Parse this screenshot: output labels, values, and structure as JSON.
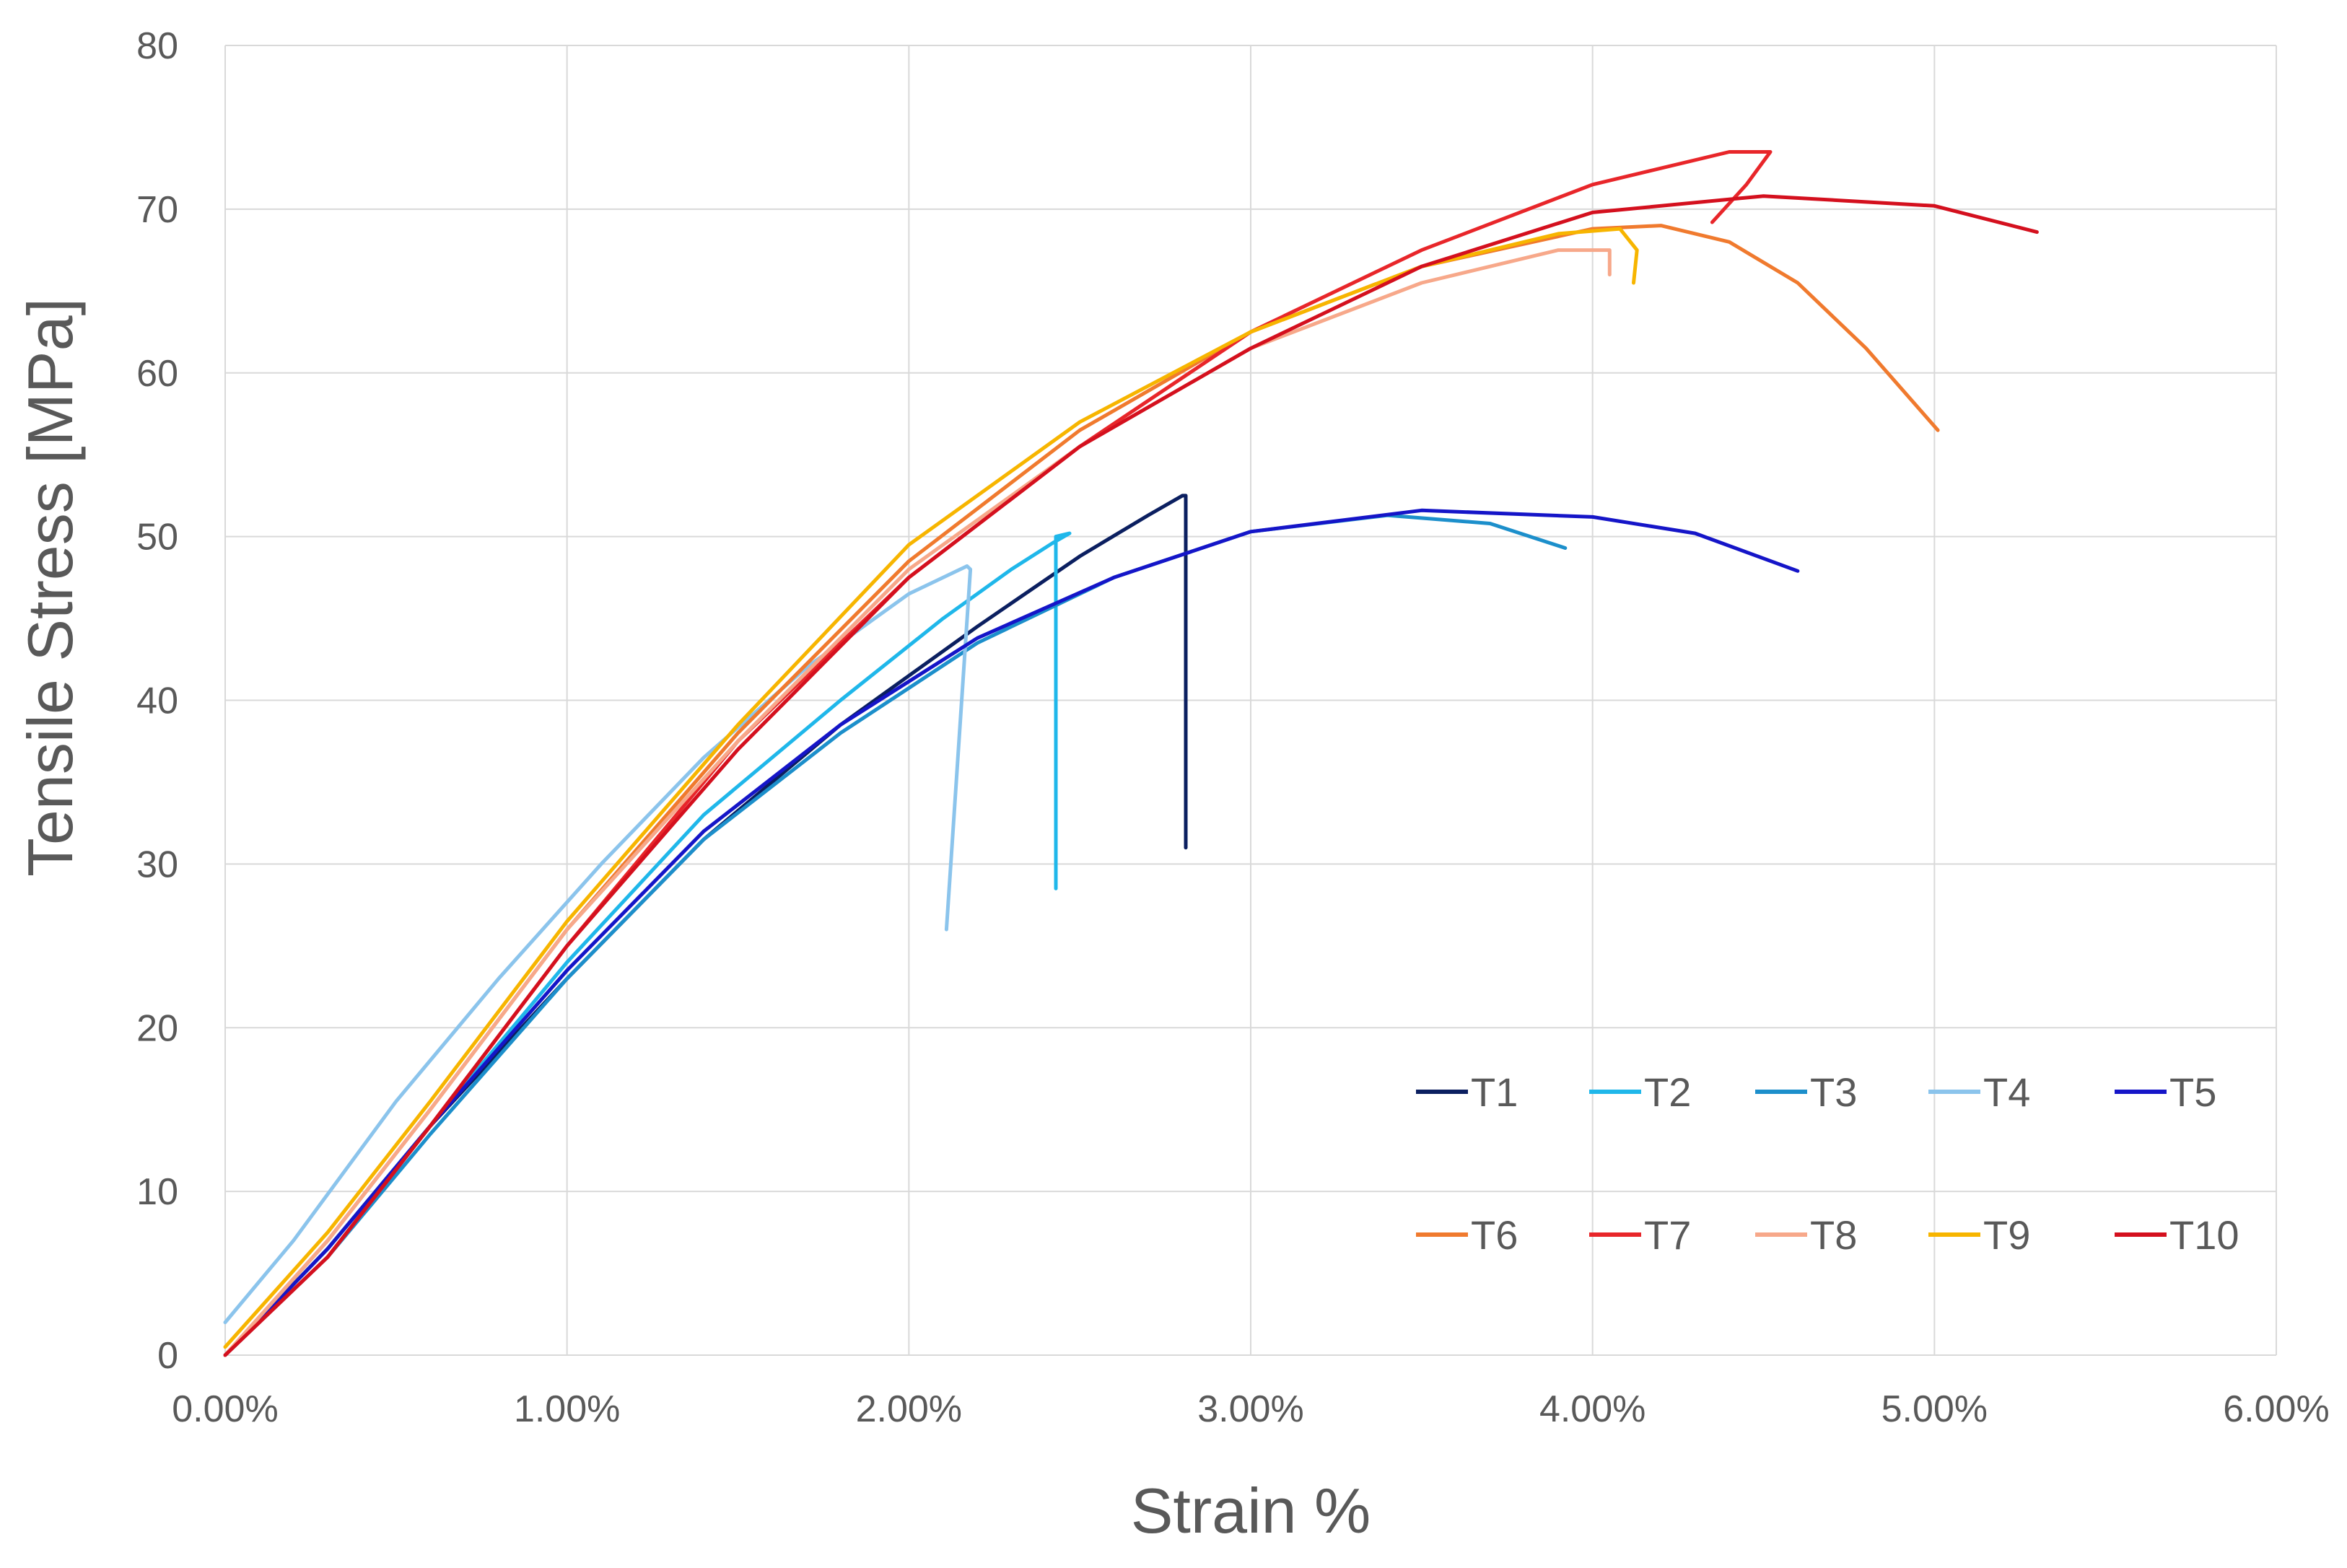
{
  "chart_data": {
    "type": "line",
    "title": "",
    "xlabel": "Strain %",
    "ylabel": "Tensile Stress [MPa]",
    "xlim": [
      0,
      6
    ],
    "ylim": [
      0,
      80
    ],
    "grid": true,
    "legend_position": "bottom-right",
    "x_ticks": [
      0,
      1,
      2,
      3,
      4,
      5,
      6
    ],
    "x_tick_labels": [
      "0.00%",
      "1.00%",
      "2.00%",
      "3.00%",
      "4.00%",
      "5.00%",
      "6.00%"
    ],
    "y_ticks": [
      0,
      10,
      20,
      30,
      40,
      50,
      60,
      70,
      80
    ],
    "y_tick_labels": [
      "0",
      "10",
      "20",
      "30",
      "40",
      "50",
      "60",
      "70",
      "80"
    ],
    "series": [
      {
        "name": "T1",
        "color": "#0B1F60",
        "x": [
          0,
          0.3,
          0.6,
          1.0,
          1.4,
          1.8,
          2.2,
          2.5,
          2.7,
          2.8,
          2.81,
          2.81
        ],
        "y": [
          0,
          6.5,
          14,
          23,
          31.5,
          38.5,
          44.5,
          48.8,
          51.3,
          52.5,
          52.5,
          31
        ]
      },
      {
        "name": "T2",
        "color": "#1FB7EA",
        "x": [
          0,
          0.3,
          0.6,
          1.0,
          1.4,
          1.8,
          2.1,
          2.3,
          2.42,
          2.47,
          2.43,
          2.43
        ],
        "y": [
          0,
          6.5,
          14,
          24,
          33,
          40,
          45,
          48,
          49.6,
          50.2,
          50,
          28.5
        ]
      },
      {
        "name": "T3",
        "color": "#1C8FCB",
        "x": [
          0,
          0.3,
          0.6,
          1.0,
          1.4,
          1.8,
          2.2,
          2.6,
          3.0,
          3.4,
          3.7,
          3.92
        ],
        "y": [
          0,
          6,
          13.5,
          23,
          31.5,
          38,
          43.5,
          47.5,
          50.3,
          51.3,
          50.8,
          49.3
        ]
      },
      {
        "name": "T4",
        "color": "#8BC4EC",
        "x": [
          0,
          0.2,
          0.5,
          0.8,
          1.1,
          1.4,
          1.7,
          2.0,
          2.17,
          2.18,
          2.11
        ],
        "y": [
          2,
          7,
          15.5,
          23,
          30,
          36.5,
          42,
          46.5,
          48.2,
          48,
          26
        ]
      },
      {
        "name": "T5",
        "color": "#1515C8",
        "x": [
          0,
          0.3,
          0.6,
          1.0,
          1.4,
          1.8,
          2.2,
          2.6,
          3.0,
          3.5,
          4.0,
          4.3,
          4.6
        ],
        "y": [
          0,
          6.5,
          14,
          23.5,
          32,
          38.5,
          43.8,
          47.5,
          50.3,
          51.6,
          51.2,
          50.2,
          47.9
        ]
      },
      {
        "name": "T6",
        "color": "#F07A2E",
        "x": [
          0,
          0.3,
          0.6,
          1.0,
          1.5,
          2.0,
          2.5,
          3.0,
          3.5,
          4.0,
          4.2,
          4.4,
          4.6,
          4.8,
          5.01
        ],
        "y": [
          0,
          7,
          15,
          26,
          38,
          48.5,
          56.5,
          62.5,
          66.5,
          68.8,
          69,
          68,
          65.5,
          61.5,
          56.5
        ]
      },
      {
        "name": "T7",
        "color": "#E8262A",
        "x": [
          0,
          0.3,
          0.6,
          1.0,
          1.5,
          2.0,
          2.5,
          3.0,
          3.5,
          4.0,
          4.4,
          4.52,
          4.45,
          4.35
        ],
        "y": [
          0,
          6,
          14,
          25,
          37.5,
          47.5,
          55.5,
          62.5,
          67.5,
          71.5,
          73.5,
          73.5,
          71.5,
          69.2
        ]
      },
      {
        "name": "T8",
        "color": "#F7A88A",
        "x": [
          0,
          0.3,
          0.6,
          1.0,
          1.5,
          2.0,
          2.5,
          3.0,
          3.5,
          3.9,
          4.05,
          4.05
        ],
        "y": [
          0,
          7,
          15,
          26,
          37.5,
          48,
          55.5,
          61.5,
          65.5,
          67.5,
          67.5,
          66
        ]
      },
      {
        "name": "T9",
        "color": "#F7B500",
        "x": [
          0,
          0.3,
          0.6,
          1.0,
          1.5,
          2.0,
          2.5,
          3.0,
          3.5,
          3.9,
          4.08,
          4.13,
          4.12
        ],
        "y": [
          0.5,
          7.5,
          15.5,
          26.5,
          38.5,
          49.5,
          57,
          62.5,
          66.5,
          68.5,
          68.8,
          67.5,
          65.5
        ]
      },
      {
        "name": "T10",
        "color": "#D4101E",
        "x": [
          0,
          0.3,
          0.6,
          1.0,
          1.5,
          2.0,
          2.5,
          3.0,
          3.5,
          4.0,
          4.5,
          5.0,
          5.3
        ],
        "y": [
          0,
          6,
          14,
          25,
          37,
          47.5,
          55.5,
          61.5,
          66.5,
          69.8,
          70.8,
          70.2,
          68.6
        ]
      }
    ]
  }
}
